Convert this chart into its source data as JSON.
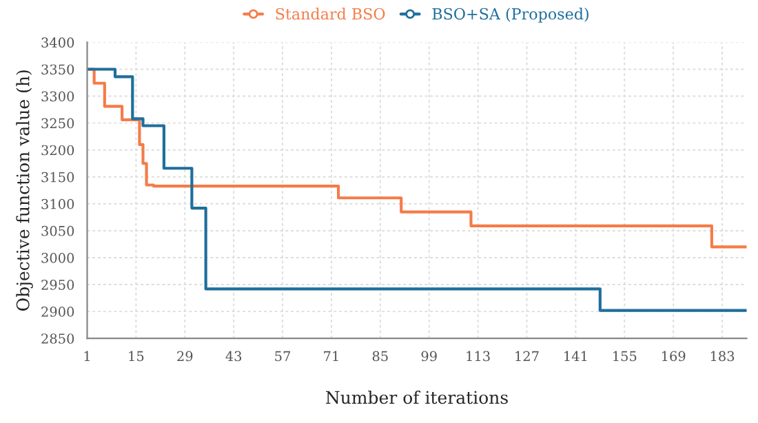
{
  "chart_data": {
    "type": "step",
    "xlabel": "Number of iterations",
    "ylabel": "Objective function value (h)",
    "series": [
      {
        "name": "Standard BSO",
        "color": "#f47c48",
        "x": [
          1,
          3,
          6,
          11,
          16,
          17,
          18,
          20,
          73,
          91,
          111,
          180,
          190
        ],
        "values": [
          3350,
          3324,
          3281,
          3256,
          3210,
          3175,
          3135,
          3133,
          3111,
          3085,
          3059,
          3020,
          3020
        ]
      },
      {
        "name": "BSO+SA (Proposed)",
        "color": "#1f6e9c",
        "x": [
          1,
          9,
          14,
          17,
          23,
          31,
          35,
          148,
          190
        ],
        "values": [
          3350,
          3336,
          3258,
          3245,
          3166,
          3092,
          2942,
          2902,
          2902
        ]
      }
    ],
    "xlim": [
      1,
      190
    ],
    "xticks": [
      1,
      15,
      29,
      43,
      57,
      71,
      85,
      99,
      113,
      127,
      141,
      155,
      169,
      183
    ],
    "ylim": [
      2850,
      3400
    ],
    "yticks": [
      2850,
      2900,
      2950,
      3000,
      3050,
      3100,
      3150,
      3200,
      3250,
      3300,
      3350,
      3400
    ],
    "grid": true,
    "legend": "top"
  }
}
